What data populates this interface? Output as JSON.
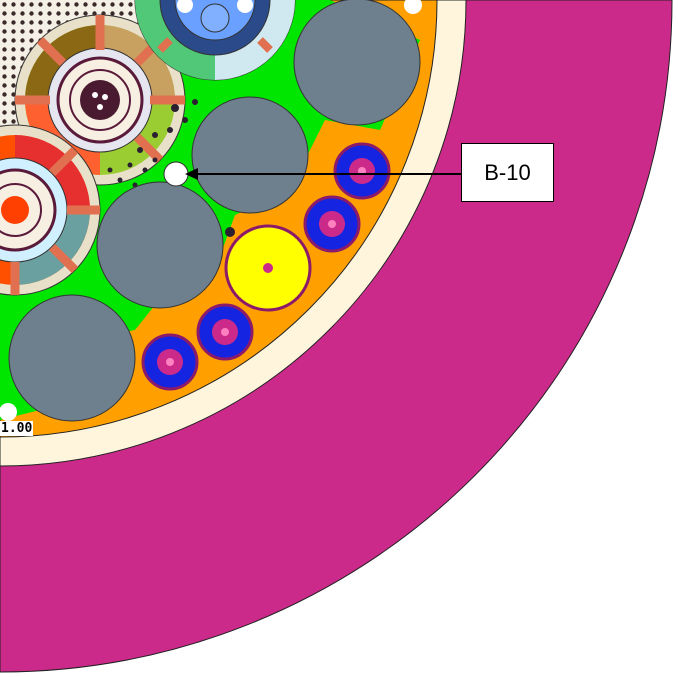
{
  "callout": {
    "label": "B-10"
  },
  "scale": {
    "label": "1.00"
  },
  "colors": {
    "vessel": "#cc2a8a",
    "liner": "#fff5dc",
    "reflector": "#ff9f00",
    "core_fill": "#00e600",
    "large_rod": "#6e7f8e",
    "blue_rod": "#1424e0",
    "yellow_rod": "#ffff00",
    "rod_border": "#8b1a6a"
  }
}
